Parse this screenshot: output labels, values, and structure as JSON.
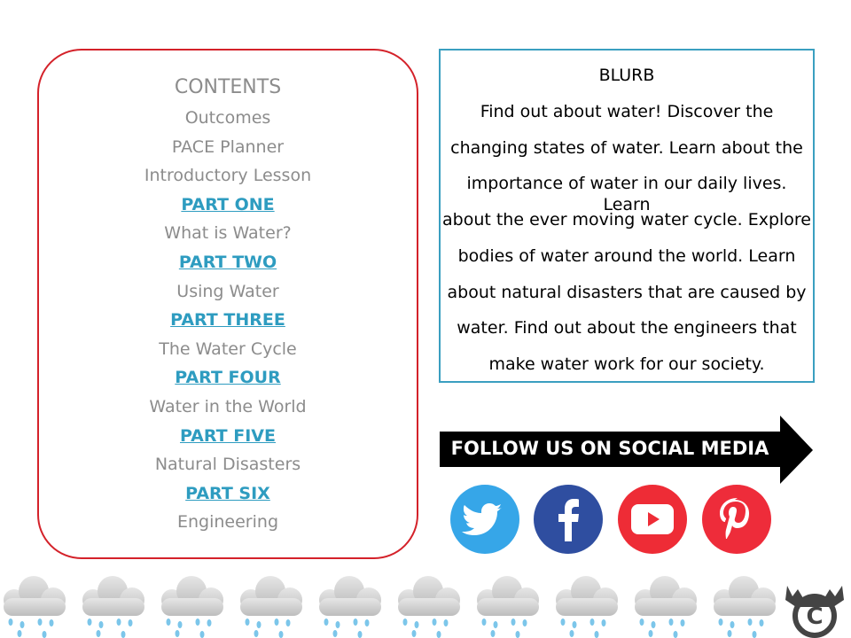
{
  "contents": {
    "title": "CONTENTS",
    "items": [
      {
        "label": "Outcomes",
        "type": "item"
      },
      {
        "label": "PACE Planner",
        "type": "item"
      },
      {
        "label": "Introductory Lesson",
        "type": "item"
      },
      {
        "label": "PART ONE",
        "type": "link"
      },
      {
        "label": "What is Water?",
        "type": "item"
      },
      {
        "label": "PART TWO",
        "type": "link"
      },
      {
        "label": "Using Water",
        "type": "item"
      },
      {
        "label": "PART THREE",
        "type": "link"
      },
      {
        "label": "The Water Cycle",
        "type": "item"
      },
      {
        "label": "PART FOUR",
        "type": "link"
      },
      {
        "label": "Water in the World",
        "type": "item"
      },
      {
        "label": "PART FIVE",
        "type": "link"
      },
      {
        "label": "Natural Disasters",
        "type": "item"
      },
      {
        "label": "PART SIX",
        "type": "link"
      },
      {
        "label": "Engineering",
        "type": "item"
      }
    ]
  },
  "blurb": {
    "title": "BLURB",
    "lines": [
      "Find out about water! Discover the",
      "changing states of water. Learn about the",
      "importance of water in our daily lives. Learn",
      "about the ever moving water cycle. Explore",
      "bodies of water around the world. Learn",
      "about natural disasters that are caused by",
      "water. Find out about the engineers that",
      "make water work for our society."
    ]
  },
  "social": {
    "banner": "FOLLOW US ON SOCIAL MEDIA",
    "icons": [
      {
        "name": "twitter-icon",
        "color": "#36a6e8"
      },
      {
        "name": "facebook-icon",
        "color": "#2f4ea0"
      },
      {
        "name": "youtube-icon",
        "color": "#ee2c36"
      },
      {
        "name": "pinterest-icon",
        "color": "#ee2c3a"
      }
    ]
  },
  "colors": {
    "contents_border": "#d4222a",
    "link": "#2e9cc0",
    "text_gray": "#8c8c8c",
    "blurb_border": "#3a9fc0"
  }
}
